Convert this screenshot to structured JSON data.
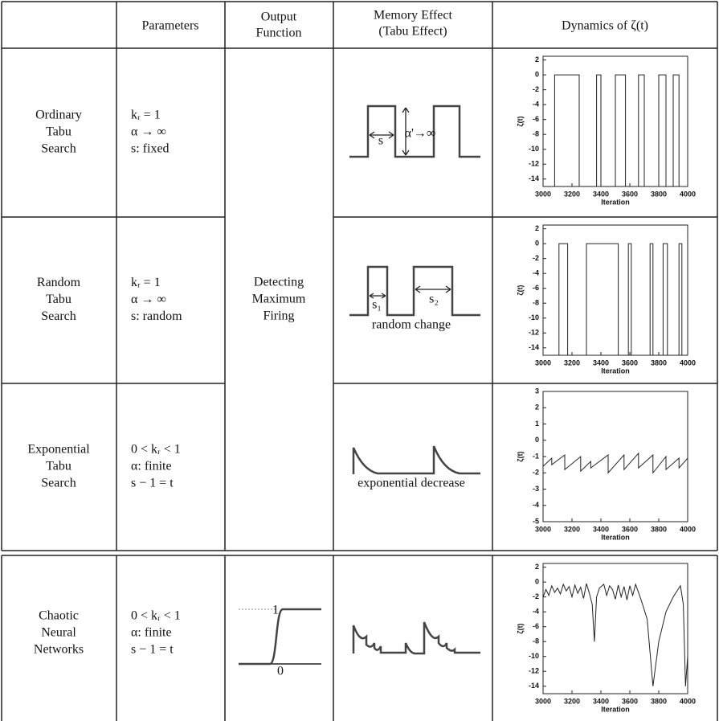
{
  "header": {
    "parameters": "Parameters",
    "output": [
      "Output",
      "Function"
    ],
    "memory": [
      "Memory Effect",
      "(Tabu Effect)"
    ],
    "dynamics": "Dynamics of ζ(t)"
  },
  "output_shared": [
    "Detecting",
    "Maximum",
    "Firing"
  ],
  "plot_axes": {
    "xlim": [
      3000,
      4000
    ],
    "xticks": [
      3000,
      3200,
      3400,
      3600,
      3800,
      4000
    ],
    "xlabel": "Iteration",
    "ylabel": "ζ(t)"
  },
  "rows": [
    {
      "label": [
        "Ordinary",
        "Tabu",
        "Search"
      ],
      "parameters": [
        "kᵣ = 1",
        "α → ∞",
        "s: fixed"
      ],
      "memory_labels": [
        "s",
        "α'→∞"
      ],
      "plot": {
        "ylim": [
          -15,
          2.5
        ],
        "yticks": [
          2,
          0,
          -2,
          -4,
          -6,
          -8,
          -10,
          -12,
          -14
        ],
        "x": [
          3080,
          3080,
          3250,
          3250,
          3370,
          3370,
          3400,
          3400,
          3500,
          3500,
          3570,
          3570,
          3660,
          3660,
          3700,
          3700,
          3800,
          3800,
          3850,
          3850,
          3900,
          3900,
          3940,
          3940
        ],
        "y": [
          -15,
          0,
          0,
          -15,
          -15,
          0,
          0,
          -15,
          -15,
          0,
          0,
          -15,
          -15,
          0,
          0,
          -15,
          -15,
          0,
          0,
          -15,
          -15,
          0,
          0,
          -15
        ]
      }
    },
    {
      "label": [
        "Random",
        "Tabu",
        "Search"
      ],
      "parameters": [
        "kᵣ = 1",
        "α → ∞",
        "s: random"
      ],
      "memory_labels": [
        "s₁",
        "s₂",
        "random change"
      ],
      "plot": {
        "ylim": [
          -15,
          2.5
        ],
        "yticks": [
          2,
          0,
          -2,
          -4,
          -6,
          -8,
          -10,
          -12,
          -14
        ],
        "x": [
          3110,
          3110,
          3170,
          3170,
          3300,
          3300,
          3520,
          3520,
          3590,
          3590,
          3610,
          3610,
          3740,
          3740,
          3760,
          3760,
          3830,
          3830,
          3860,
          3860,
          3940,
          3940,
          3960,
          3960
        ],
        "y": [
          -15,
          0,
          0,
          -15,
          -15,
          0,
          0,
          -15,
          -15,
          0,
          0,
          -15,
          -15,
          0,
          0,
          -15,
          -15,
          0,
          0,
          -15,
          -15,
          0,
          0,
          -15
        ]
      }
    },
    {
      "label": [
        "Exponential",
        "Tabu",
        "Search"
      ],
      "parameters": [
        "0 < kᵣ < 1",
        "α: finite",
        "s − 1 = t"
      ],
      "memory_labels": [
        "exponential decrease"
      ],
      "plot": {
        "ylim": [
          -5,
          3
        ],
        "yticks": [
          3,
          2,
          1,
          0,
          -1,
          -2,
          -3,
          -4,
          -5
        ],
        "x": [
          3000,
          3060,
          3060,
          3150,
          3150,
          3260,
          3260,
          3330,
          3330,
          3450,
          3450,
          3560,
          3560,
          3660,
          3660,
          3760,
          3760,
          3850,
          3850,
          3940,
          3940,
          4000
        ],
        "y": [
          -1.6,
          -1.1,
          -1.5,
          -0.9,
          -1.8,
          -1.0,
          -1.9,
          -1.3,
          -1.7,
          -0.9,
          -2.0,
          -0.9,
          -1.8,
          -0.8,
          -1.7,
          -0.9,
          -2.0,
          -1.0,
          -1.8,
          -1.1,
          -1.7,
          -1.1
        ]
      }
    },
    {
      "label": [
        "Chaotic",
        "Neural",
        "Networks"
      ],
      "parameters": [
        "0 < kᵣ < 1",
        "α: finite",
        "s − 1 = t"
      ],
      "output_labels": [
        "1",
        "0"
      ],
      "plot": {
        "ylim": [
          -15,
          2.5
        ],
        "yticks": [
          2,
          0,
          -2,
          -4,
          -6,
          -8,
          -10,
          -12,
          -14
        ],
        "x": [
          3000,
          3020,
          3040,
          3060,
          3080,
          3100,
          3120,
          3140,
          3160,
          3180,
          3200,
          3220,
          3240,
          3260,
          3280,
          3300,
          3320,
          3340,
          3355,
          3370,
          3390,
          3420,
          3440,
          3460,
          3480,
          3500,
          3520,
          3540,
          3560,
          3580,
          3600,
          3620,
          3640,
          3680,
          3720,
          3760,
          3800,
          3850,
          3900,
          3950,
          3970,
          3985,
          4000
        ],
        "y": [
          -2,
          -1,
          -1.8,
          -0.5,
          -1.4,
          -0.8,
          -1.6,
          -0.3,
          -1.2,
          -0.6,
          -2,
          -0.4,
          -1.5,
          -0.7,
          -2.2,
          -0.2,
          -1.5,
          -3,
          -8,
          -2,
          -0.8,
          -0.3,
          -1.8,
          -0.5,
          -1,
          -2.3,
          -0.4,
          -2,
          -0.6,
          -2.4,
          -0.5,
          -1.8,
          -0.3,
          -2.5,
          -5,
          -14,
          -8,
          -4,
          -2,
          -0.5,
          -3,
          -14,
          -10
        ]
      }
    }
  ]
}
